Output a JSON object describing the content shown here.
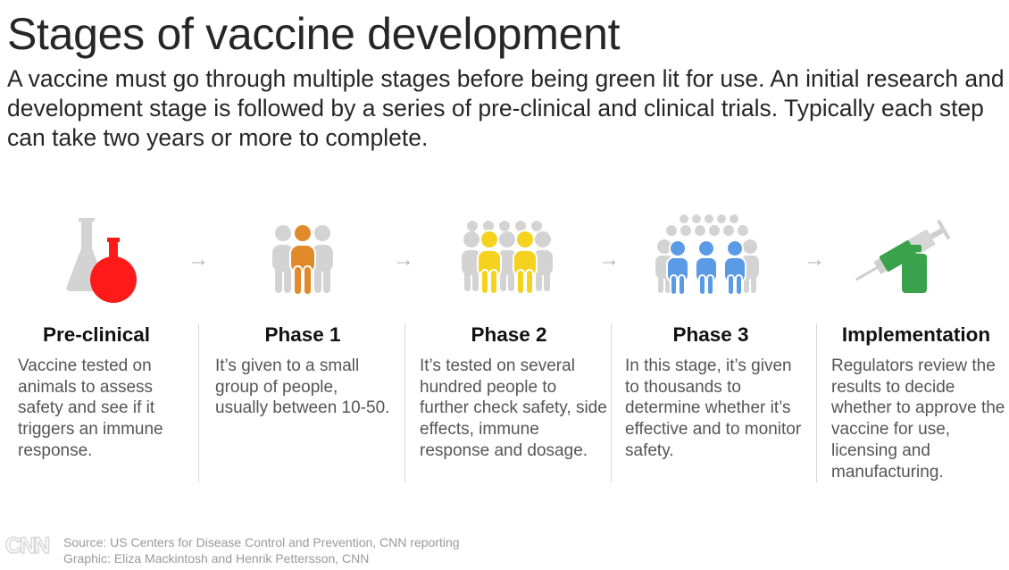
{
  "header": {
    "title": "Stages of vaccine development",
    "subtitle": "A vaccine must go through multiple stages before being green lit for use. An initial research and development stage is followed by a series of pre-clinical and clinical trials. Typically each step can take two years or more to complete."
  },
  "arrow_glyph": "→",
  "stages": [
    {
      "title": "Pre-clinical",
      "description": "Vaccine tested on animals to assess safety and see if it triggers an immune response.",
      "icon": "flask-icon",
      "color": "#ff1a1a"
    },
    {
      "title": "Phase 1",
      "description": "It’s given to a small group of people, usually between 10-50.",
      "icon": "small-group-icon",
      "color": "#e08a2a"
    },
    {
      "title": "Phase 2",
      "description": "It’s tested on several hundred people to further check safety, side effects, immune response and dosage.",
      "icon": "medium-group-icon",
      "color": "#f5d21e"
    },
    {
      "title": "Phase 3",
      "description": "In this stage, it’s given to thousands to determine whether it’s effective and to monitor safety.",
      "icon": "large-group-icon",
      "color": "#5b9be6"
    },
    {
      "title": "Implementation",
      "description": "Regulators review the results to decide whether to approve the vaccine for use, licensing and manufacturing.",
      "icon": "syringe-vial-icon",
      "color": "#3aa24a"
    }
  ],
  "footer": {
    "logo": "CNN",
    "source": "Source: US Centers for Disease Control and Prevention, CNN reporting",
    "graphic": "Graphic: Eliza Mackintosh and Henrik Pettersson, CNN"
  },
  "colors": {
    "neutral_icon": "#d0d0d0",
    "text": "#262626",
    "muted": "#999999"
  }
}
